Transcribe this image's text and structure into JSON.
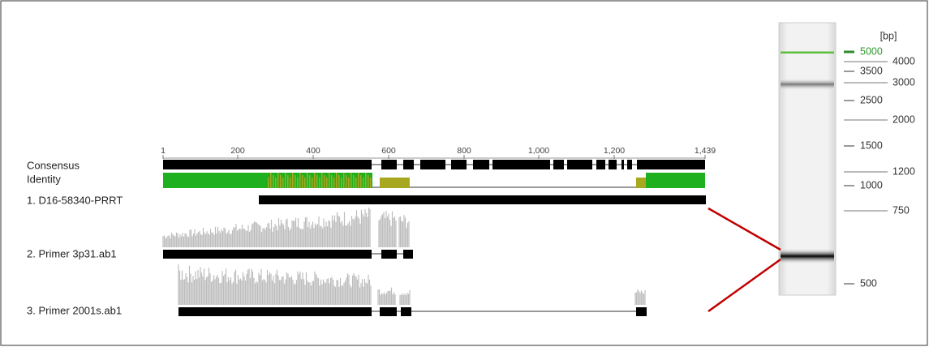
{
  "ruler": [
    "1",
    "200",
    "400",
    "600",
    "800",
    "1,000",
    "1,200",
    "1,439"
  ],
  "tracks": {
    "consensus": "Consensus",
    "identity": "Identity",
    "rows": [
      "1. D16-58340-PRRT",
      "2. Primer 3p31.ab1",
      "3. Primer 2001s.ab1"
    ]
  },
  "gel": {
    "unit": "[bp]",
    "ladder": [
      "5000",
      "4000",
      "3500",
      "3000",
      "2500",
      "2000",
      "1500",
      "1200",
      "1000",
      "750",
      "500"
    ]
  }
}
